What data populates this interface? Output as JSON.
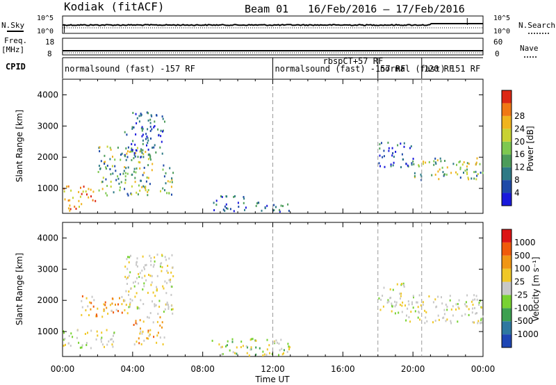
{
  "header": {
    "station": "Kodiak (fitACF)",
    "beam": "Beam 01",
    "date_range": "16/Feb/2016 – 17/Feb/2016"
  },
  "side_labels": {
    "nsky": "N.Sky",
    "nsearch": "N.Search",
    "freq_top": "Freq.",
    "freq_unit": "[MHz]",
    "nave": "Nave",
    "cpid": "CPID",
    "nsky_ticks": [
      "10^5",
      "10^0"
    ],
    "nsearch_ticks": [
      "10^5",
      "10^0"
    ],
    "freq_ticks": [
      "18",
      "8"
    ],
    "nave_ticks": [
      "60",
      "0"
    ]
  },
  "cpid_segments": [
    {
      "label": "normalsound (fast) -157 RF",
      "start_hr": 0.0,
      "end_hr": 12.0
    },
    {
      "label": "normalsound (fast) -157 RF",
      "start_hr": 12.0,
      "end_hr": 18.0,
      "overlap": "rbspCT+57 RF"
    },
    {
      "label": "normal (fast) 151 RF",
      "start_hr": 18.0,
      "end_hr": 20.5
    },
    {
      "label": "120 RF",
      "start_hr": 20.5,
      "end_hr": 24.0
    }
  ],
  "chart_data": [
    {
      "type": "heatmap",
      "title": "Power",
      "ylabel": "Slant Range [km]",
      "xlabel": "Time UT",
      "ylim": [
        200,
        4500
      ],
      "yticks": [
        1000,
        2000,
        3000,
        4000
      ],
      "xlim_hr": [
        0,
        24
      ],
      "xtick_labels": [
        "00:00",
        "04:00",
        "08:00",
        "12:00",
        "16:00",
        "20:00",
        "00:00"
      ],
      "colorbar": {
        "label": "Power [dB]",
        "ticks": [
          "4",
          "8",
          "12",
          "16",
          "20",
          "24",
          "28"
        ],
        "colors": [
          "#1a1adc",
          "#1e4aa8",
          "#2e7a86",
          "#4c9c5a",
          "#7ec850",
          "#c8d232",
          "#f0b41e",
          "#f07814",
          "#dc2814"
        ]
      },
      "regions": [
        {
          "t0": 0.0,
          "t1": 2.0,
          "r0": 600,
          "r1": 1100,
          "level": "high"
        },
        {
          "t0": 0.3,
          "t1": 1.2,
          "r0": 300,
          "r1": 650,
          "level": "high"
        },
        {
          "t0": 2.0,
          "t1": 5.2,
          "r0": 800,
          "r1": 2400,
          "level": "mid"
        },
        {
          "t0": 3.5,
          "t1": 5.8,
          "r0": 2000,
          "r1": 3500,
          "level": "low"
        },
        {
          "t0": 5.5,
          "t1": 6.3,
          "r0": 800,
          "r1": 1800,
          "level": "mid"
        },
        {
          "t0": 8.5,
          "t1": 10.5,
          "r0": 300,
          "r1": 800,
          "level": "low"
        },
        {
          "t0": 11.0,
          "t1": 13.0,
          "r0": 250,
          "r1": 600,
          "level": "low"
        },
        {
          "t0": 18.0,
          "t1": 20.0,
          "r0": 1700,
          "r1": 2500,
          "level": "low"
        },
        {
          "t0": 20.0,
          "t1": 24.0,
          "r0": 1300,
          "r1": 2000,
          "level": "mid"
        }
      ]
    },
    {
      "type": "heatmap",
      "title": "Velocity",
      "ylabel": "Slant Range [km]",
      "xlabel": "Time UT",
      "ylim": [
        200,
        4500
      ],
      "yticks": [
        1000,
        2000,
        3000,
        4000
      ],
      "xlim_hr": [
        0,
        24
      ],
      "xtick_labels": [
        "00:00",
        "04:00",
        "08:00",
        "12:00",
        "16:00",
        "20:00",
        "00:00"
      ],
      "colorbar": {
        "label": "Velocity [m s⁻¹]",
        "ticks": [
          "1000",
          "500",
          "100",
          "25",
          "-25",
          "-100",
          "-500",
          "-1000"
        ],
        "colors": [
          "#1e46b4",
          "#2e78a0",
          "#3ca050",
          "#78d232",
          "#c8c8c8",
          "#f0c828",
          "#f09614",
          "#f05a0a",
          "#dc1414"
        ]
      },
      "regions": [
        {
          "t0": 0.0,
          "t1": 3.0,
          "r0": 500,
          "r1": 1100,
          "level": "gray"
        },
        {
          "t0": 1.0,
          "t1": 3.5,
          "r0": 1500,
          "r1": 2200,
          "level": "orange"
        },
        {
          "t0": 4.0,
          "t1": 5.8,
          "r0": 600,
          "r1": 1500,
          "level": "orange"
        },
        {
          "t0": 3.5,
          "t1": 6.3,
          "r0": 1600,
          "r1": 3500,
          "level": "gray"
        },
        {
          "t0": 8.5,
          "t1": 13.0,
          "r0": 250,
          "r1": 800,
          "level": "green"
        },
        {
          "t0": 18.0,
          "t1": 19.5,
          "r0": 1600,
          "r1": 2600,
          "level": "gray"
        },
        {
          "t0": 19.5,
          "t1": 24.0,
          "r0": 1300,
          "r1": 2200,
          "level": "gray"
        }
      ]
    }
  ]
}
